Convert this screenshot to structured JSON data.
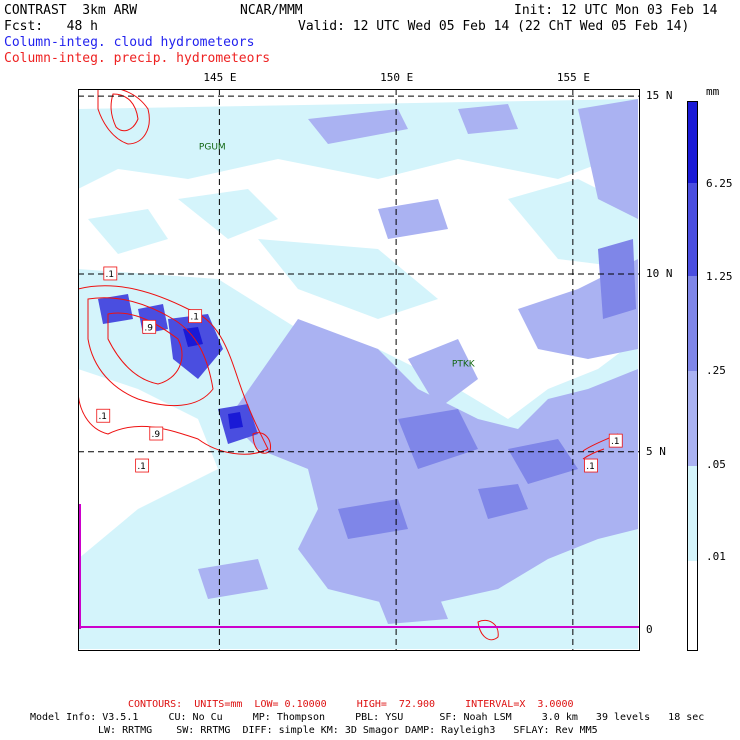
{
  "header": {
    "left1": "CONTRAST  3km ARW",
    "center": "NCAR/MMM",
    "right1": "Init: 12 UTC Mon 03 Feb 14",
    "left2": "Fcst:   48 h",
    "right2": "Valid: 12 UTC Wed 05 Feb 14 (22 ChT Wed 05 Feb 14)",
    "field_cloud": "Column-integ. cloud hydrometeors",
    "field_precip": "Column-integ. precip. hydrometeors"
  },
  "colors": {
    "c1": "#d4f4fb",
    "c2": "#aab2f2",
    "c3": "#7f86e8",
    "c4": "#4a4ee0",
    "c5": "#1a1ad6",
    "precip": "#ee1111",
    "equator": "#cc00cc"
  },
  "axes": {
    "lon_ticks": [
      {
        "value": 145,
        "label": "145 E"
      },
      {
        "value": 150,
        "label": "150 E"
      },
      {
        "value": 155,
        "label": "155 E"
      }
    ],
    "lat_ticks": [
      {
        "value": 15,
        "label": "15 N"
      },
      {
        "value": 10,
        "label": "10 N"
      },
      {
        "value": 5,
        "label": "5 N"
      },
      {
        "value": 0,
        "label": "0"
      }
    ],
    "lon_range": [
      141,
      156.9
    ],
    "lat_range": [
      -0.6,
      15.2
    ]
  },
  "stations": [
    {
      "name": "PGUM",
      "lon": 144.8,
      "lat": 13.5
    },
    {
      "name": "PTKK",
      "lon": 151.9,
      "lat": 7.4
    }
  ],
  "contour_labels": [
    {
      "text": ".1",
      "lon": 141.9,
      "lat": 10.0
    },
    {
      "text": ".1",
      "lon": 144.3,
      "lat": 8.8
    },
    {
      "text": ".9",
      "lon": 143.0,
      "lat": 8.5
    },
    {
      "text": ".1",
      "lon": 141.7,
      "lat": 6.0
    },
    {
      "text": ".9",
      "lon": 143.2,
      "lat": 5.5
    },
    {
      "text": ".1",
      "lon": 142.8,
      "lat": 4.6
    },
    {
      "text": ".1",
      "lon": 156.2,
      "lat": 5.3
    },
    {
      "text": ".1",
      "lon": 155.5,
      "lat": 4.6
    }
  ],
  "legend": {
    "unit": "mm",
    "levels": [
      ".01",
      ".05",
      ".25",
      "1.25",
      "6.25"
    ]
  },
  "footer": {
    "contours": "CONTOURS:  UNITS=mm  LOW= 0.10000     HIGH=  72.900     INTERVAL=X  3.0000",
    "line1": "Model Info: V3.5.1     CU: No Cu     MP: Thompson     PBL: YSU      SF: Noah LSM     3.0 km   39 levels   18 sec",
    "line2": "LW: RRTMG    SW: RRTMG  DIFF: simple KM: 3D Smagor DAMP: Rayleigh3   SFLAY: Rev MM5"
  }
}
